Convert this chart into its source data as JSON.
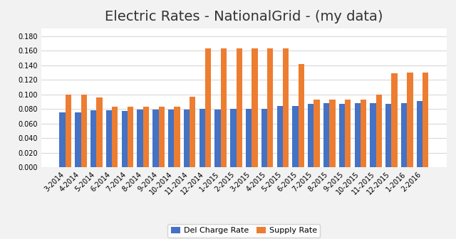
{
  "title": "Electric Rates - NationalGrid - (my data)",
  "categories": [
    "3-2014",
    "4-2014",
    "5-2014",
    "6-2014",
    "7-2014",
    "8-2014",
    "9-2014",
    "10-2014",
    "11-2014",
    "12-2014",
    "1-2015",
    "2-2015",
    "3-2015",
    "4-2015",
    "5-2015",
    "6-2015",
    "7-2015",
    "8-2015",
    "9-2015",
    "10-2015",
    "11-2015",
    "12-2015",
    "1-2016",
    "2-2016"
  ],
  "del_charge_rate": [
    0.075,
    0.075,
    0.078,
    0.078,
    0.077,
    0.079,
    0.079,
    0.079,
    0.079,
    0.08,
    0.079,
    0.08,
    0.08,
    0.08,
    0.084,
    0.084,
    0.087,
    0.088,
    0.087,
    0.088,
    0.088,
    0.087,
    0.088,
    0.091
  ],
  "supply_rate": [
    0.1,
    0.1,
    0.096,
    0.083,
    0.083,
    0.083,
    0.083,
    0.083,
    0.097,
    0.163,
    0.163,
    0.163,
    0.163,
    0.163,
    0.163,
    0.142,
    0.093,
    0.093,
    0.093,
    0.093,
    0.1,
    0.129,
    0.13,
    0.13
  ],
  "del_color": "#4472C4",
  "supply_color": "#ED7D31",
  "ylim": [
    0.0,
    0.19
  ],
  "yticks": [
    0.0,
    0.02,
    0.04,
    0.06,
    0.08,
    0.1,
    0.12,
    0.14,
    0.16,
    0.18
  ],
  "legend_labels": [
    "Del Charge Rate",
    "Supply Rate"
  ],
  "figure_facecolor": "#F2F2F2",
  "axes_facecolor": "#FFFFFF",
  "grid_color": "#D9D9D9",
  "title_fontsize": 14,
  "tick_fontsize": 7,
  "legend_fontsize": 8,
  "bar_width": 0.38
}
